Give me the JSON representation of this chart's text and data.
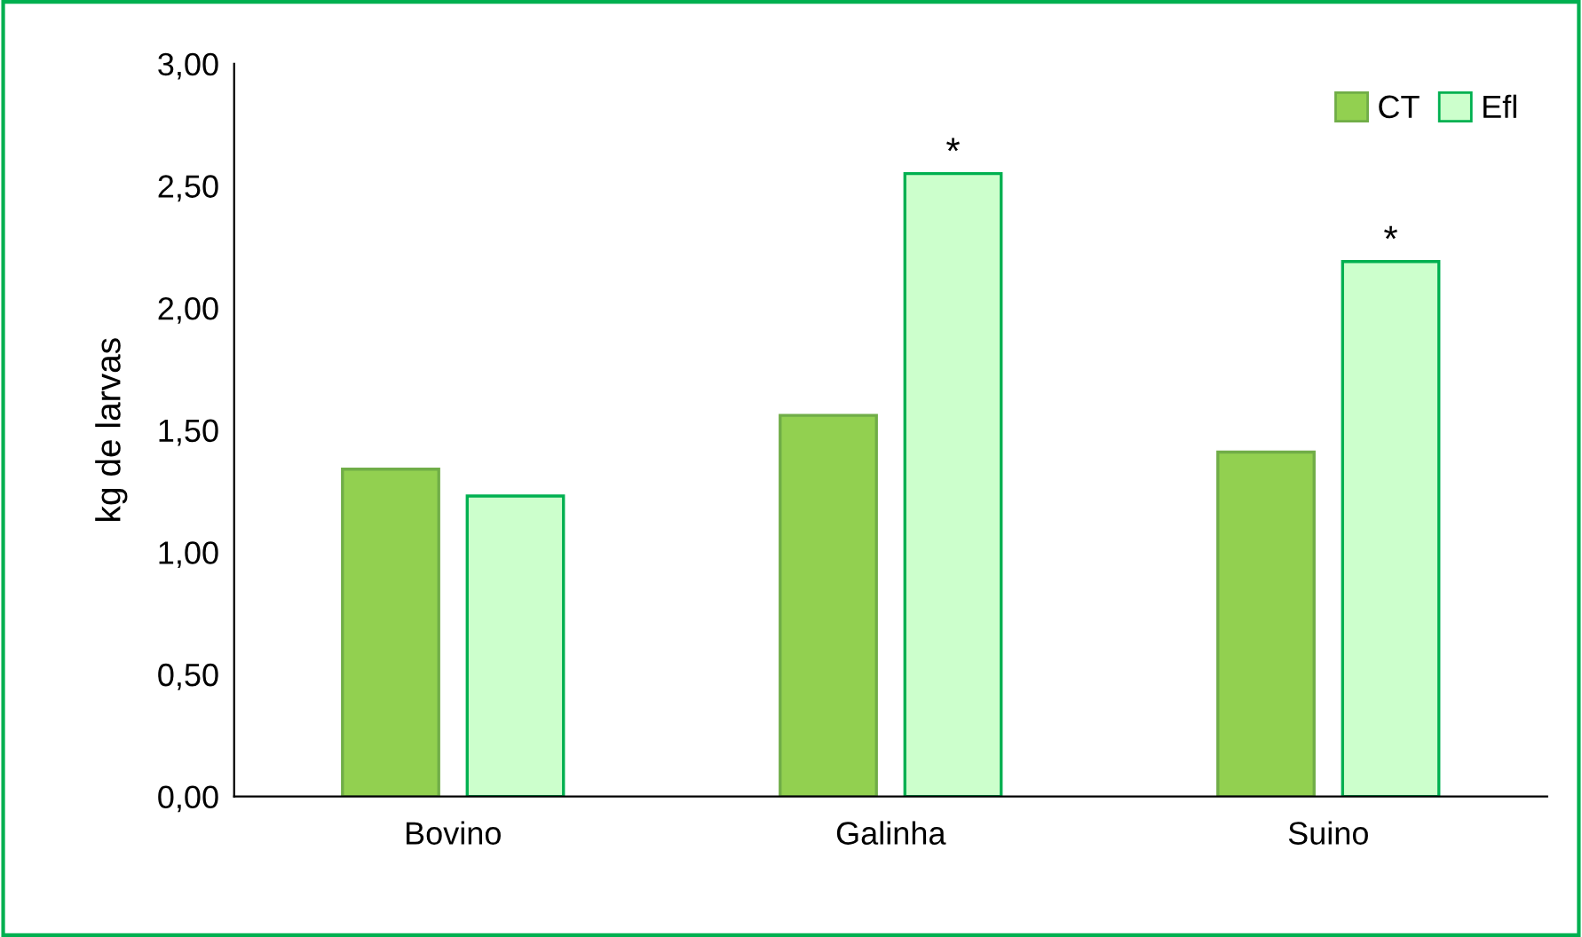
{
  "chart_data": {
    "type": "bar",
    "ylabel": "kg de larvas",
    "categories": [
      "Bovino",
      "Galinha",
      "Suino"
    ],
    "series": [
      {
        "name": "CT",
        "color": "#92d050",
        "values": [
          1.34,
          1.56,
          1.41
        ]
      },
      {
        "name": "Efl",
        "color": "#ccffcc",
        "values": [
          1.23,
          2.55,
          2.19
        ],
        "value_labels": [
          null,
          "*",
          "*"
        ]
      }
    ],
    "ylim": [
      0,
      3
    ],
    "yticks": [
      {
        "value": 0,
        "label": "0,00"
      },
      {
        "value": 0.5,
        "label": "0,50"
      },
      {
        "value": 1,
        "label": "1,00"
      },
      {
        "value": 1.5,
        "label": "1,50"
      },
      {
        "value": 2,
        "label": "2,00"
      },
      {
        "value": 2.5,
        "label": "2,50"
      },
      {
        "value": 3,
        "label": "3,00"
      }
    ],
    "grid": false,
    "legend": "top right"
  }
}
